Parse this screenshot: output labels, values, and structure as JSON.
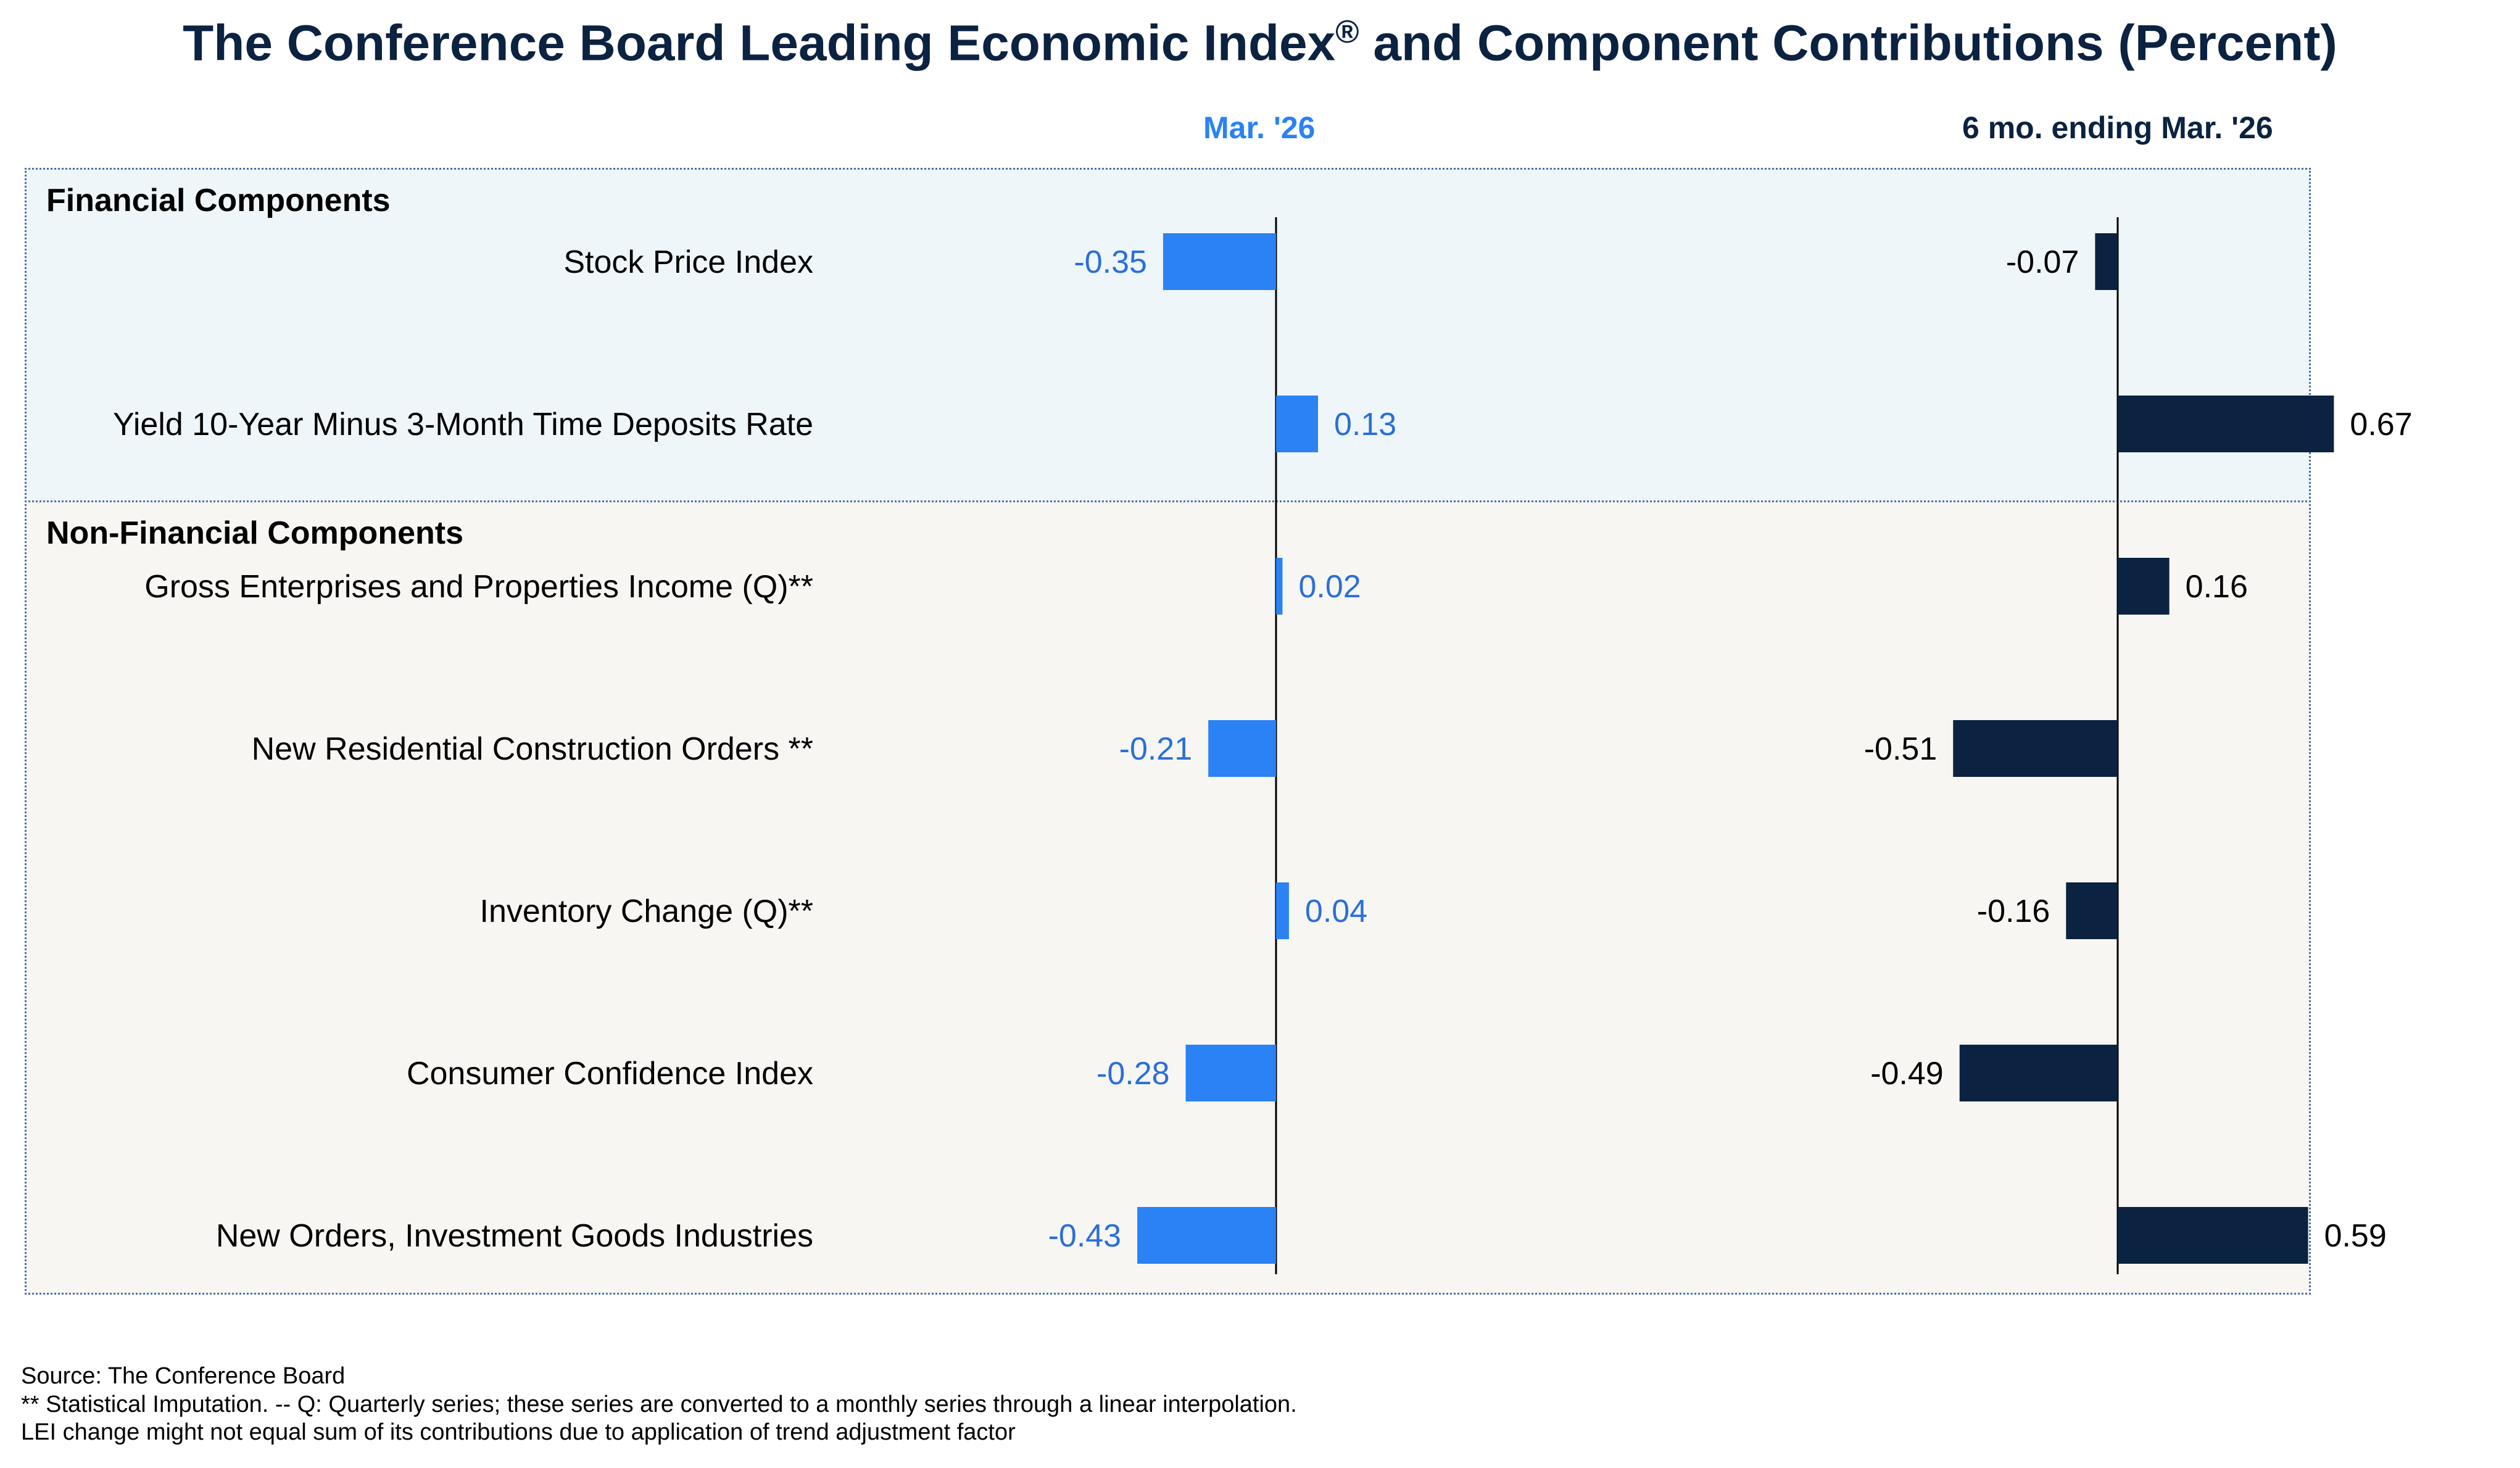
{
  "title_main": "The Conference Board Leading Economic Index",
  "title_reg": "®",
  "title_end": " and Component Contributions (Percent)",
  "chart_data": {
    "type": "bar",
    "orientation": "horizontal",
    "columns": [
      {
        "name": "Mar. '26",
        "color": "#2a82f5",
        "label_color": "#2a6fd8"
      },
      {
        "name": "6 mo. ending Mar. '26",
        "color": "#0b2241",
        "label_color": "#000000"
      }
    ],
    "sections": [
      {
        "title": "Financial Components",
        "rows": [
          {
            "label": "Stock Price Index",
            "values": [
              -0.35,
              -0.07
            ],
            "text": [
              "-0.35",
              "-0.07"
            ]
          },
          {
            "label": "Yield 10-Year Minus 3-Month Time Deposits Rate",
            "values": [
              0.13,
              0.67
            ],
            "text": [
              "0.13",
              "0.67"
            ]
          }
        ]
      },
      {
        "title": "Non-Financial Components",
        "rows": [
          {
            "label": "Gross Enterprises and Properties Income (Q)**",
            "values": [
              0.02,
              0.16
            ],
            "text": [
              "0.02",
              "0.16"
            ]
          },
          {
            "label": "New Residential Construction Orders **",
            "values": [
              -0.21,
              -0.51
            ],
            "text": [
              "-0.21",
              "-0.51"
            ]
          },
          {
            "label": "Inventory Change (Q)**",
            "values": [
              0.04,
              -0.16
            ],
            "text": [
              "0.04",
              "-0.16"
            ]
          },
          {
            "label": "Consumer Confidence Index",
            "values": [
              -0.28,
              -0.49
            ],
            "text": [
              "-0.28",
              "-0.49"
            ]
          },
          {
            "label": "New Orders, Investment Goods Industries",
            "values": [
              -0.43,
              0.59
            ],
            "text": [
              "-0.43",
              "0.59"
            ]
          }
        ]
      }
    ]
  },
  "footnotes": [
    "Source: The Conference Board",
    "**  Statistical Imputation. -- Q: Quarterly series; these series are converted to a monthly series through a linear interpolation.",
    "LEI change might not equal sum of its contributions due to application of trend adjustment factor"
  ]
}
